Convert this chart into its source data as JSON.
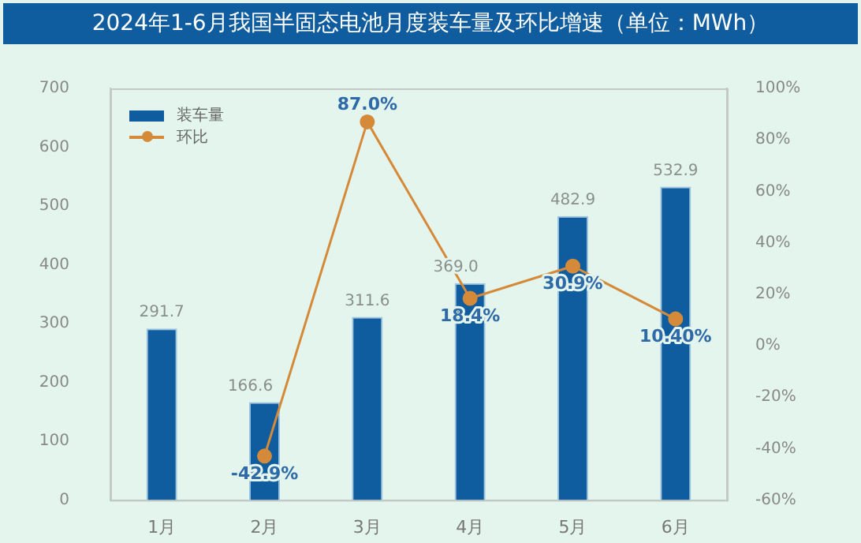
{
  "chart_data": {
    "type": "bar",
    "title": "2024年1-6月我国半固态电池月度装车量及环比增速（单位：MWh）",
    "categories": [
      "1月",
      "2月",
      "3月",
      "4月",
      "5月",
      "6月"
    ],
    "series": [
      {
        "name": "装车量",
        "color": "#0f5c9e",
        "values": [
          291.7,
          166.6,
          311.6,
          369.0,
          482.9,
          532.9
        ],
        "value_labels": [
          "291.7",
          "166.6",
          "311.6",
          "369.0",
          "482.9",
          "532.9"
        ]
      },
      {
        "name": "环比",
        "type": "line",
        "axis": "y2",
        "color": "#d58a3a",
        "marker": "circle",
        "values": [
          null,
          -42.9,
          87.0,
          18.4,
          30.9,
          10.4
        ],
        "value_labels": [
          null,
          "-42.9%",
          "87.0%",
          "18.4%",
          "30.9%",
          "10.40%"
        ]
      }
    ],
    "ylim": [
      0,
      700
    ],
    "yticks": [
      0,
      100,
      200,
      300,
      400,
      500,
      600,
      700
    ],
    "y2lim": [
      -60,
      100
    ],
    "y2ticks": [
      {
        "value": -60,
        "label": "-60%"
      },
      {
        "value": -40,
        "label": "-40%"
      },
      {
        "value": -20,
        "label": "-20%"
      },
      {
        "value": 0,
        "label": "0%"
      },
      {
        "value": 20,
        "label": "20%"
      },
      {
        "value": 40,
        "label": "40%"
      },
      {
        "value": 60,
        "label": "60%"
      },
      {
        "value": 80,
        "label": "80%"
      },
      {
        "value": 100,
        "label": "100%"
      }
    ],
    "grid": false,
    "legend": "top left"
  }
}
